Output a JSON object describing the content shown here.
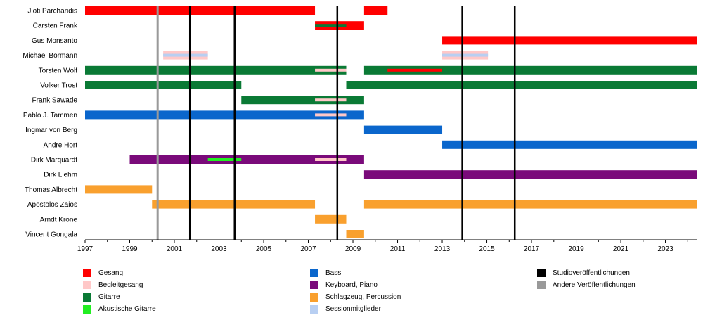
{
  "chart_data": {
    "type": "timeline",
    "xlim": [
      1997,
      2024.4
    ],
    "x_ticks": [
      "1997",
      "1999",
      "2001",
      "2003",
      "2005",
      "2007",
      "2009",
      "2011",
      "2013",
      "2015",
      "2017",
      "2019",
      "2021",
      "2023"
    ],
    "members": [
      "Jioti Parcharidis",
      "Carsten Frank",
      "Gus Monsanto",
      "Michael Bormann",
      "Torsten Wolf",
      "Volker Trost",
      "Frank Sawade",
      "Pablo J. Tammen",
      "Ingmar von Berg",
      "Andre Hort",
      "Dirk Marquardt",
      "Dirk Liehm",
      "Thomas Albrecht",
      "Apostolos Zaios",
      "Arndt Krone",
      "Vincent Gongala"
    ],
    "roles": {
      "vocals": {
        "label": "Gesang",
        "color": "#ff0000"
      },
      "backing_vocals": {
        "label": "Begleitgesang",
        "color": "#ffc8c8"
      },
      "guitar": {
        "label": "Gitarre",
        "color": "#0a7a35"
      },
      "acoustic_guitar": {
        "label": "Akustische Gitarre",
        "color": "#22ee22"
      },
      "bass": {
        "label": "Bass",
        "color": "#0a66cc"
      },
      "keyboard": {
        "label": "Keyboard, Piano",
        "color": "#7a0a7a"
      },
      "drums": {
        "label": "Schlagzeug, Percussion",
        "color": "#f9a02e"
      },
      "session": {
        "label": "Sessionmitglieder",
        "color": "#b8cff2"
      },
      "studio_release": {
        "label": "Studioveröffentlichungen",
        "color": "#000000"
      },
      "other_release": {
        "label": "Andere Veröffentlichungen",
        "color": "#999999"
      }
    },
    "legend_columns": [
      [
        "vocals",
        "backing_vocals",
        "guitar",
        "acoustic_guitar"
      ],
      [
        "bass",
        "keyboard",
        "drums",
        "session"
      ],
      [
        "studio_release",
        "other_release"
      ]
    ],
    "studio_releases": [
      2001.7,
      2003.7,
      2008.3,
      2013.9,
      2016.25
    ],
    "other_releases": [
      2000.25
    ],
    "bars": [
      {
        "row": 0,
        "role": "vocals",
        "start": 1997,
        "end": 2007.3
      },
      {
        "row": 0,
        "role": "vocals",
        "start": 2009.5,
        "end": 2010.55
      },
      {
        "row": 1,
        "role": "vocals",
        "start": 2007.3,
        "end": 2009.5
      },
      {
        "row": 2,
        "role": "vocals",
        "start": 2013.0,
        "end": 2024.4
      },
      {
        "row": 3,
        "role": "backing_vocals",
        "start": 2000.5,
        "end": 2002.5
      },
      {
        "row": 3,
        "role": "backing_vocals",
        "start": 2013.0,
        "end": 2015.05
      },
      {
        "row": 4,
        "role": "guitar",
        "start": 1997,
        "end": 2008.7
      },
      {
        "row": 4,
        "role": "guitar",
        "start": 2009.5,
        "end": 2024.4
      },
      {
        "row": 5,
        "role": "guitar",
        "start": 1997,
        "end": 2004.0
      },
      {
        "row": 5,
        "role": "guitar",
        "start": 2008.7,
        "end": 2024.4
      },
      {
        "row": 6,
        "role": "guitar",
        "start": 2004.0,
        "end": 2009.5
      },
      {
        "row": 7,
        "role": "bass",
        "start": 1997,
        "end": 2009.5
      },
      {
        "row": 8,
        "role": "bass",
        "start": 2009.5,
        "end": 2013.0
      },
      {
        "row": 9,
        "role": "bass",
        "start": 2013.0,
        "end": 2024.4
      },
      {
        "row": 10,
        "role": "keyboard",
        "start": 1999.0,
        "end": 2009.5
      },
      {
        "row": 11,
        "role": "keyboard",
        "start": 2009.5,
        "end": 2024.4
      },
      {
        "row": 12,
        "role": "drums",
        "start": 1997,
        "end": 2000.0
      },
      {
        "row": 13,
        "role": "drums",
        "start": 2000.0,
        "end": 2007.3
      },
      {
        "row": 13,
        "role": "drums",
        "start": 2009.5,
        "end": 2024.4
      },
      {
        "row": 14,
        "role": "drums",
        "start": 2007.3,
        "end": 2008.7
      },
      {
        "row": 15,
        "role": "drums",
        "start": 2008.7,
        "end": 2009.5
      }
    ],
    "sub_bars": [
      {
        "row": 1,
        "role": "guitar",
        "start": 2007.3,
        "end": 2008.7
      },
      {
        "row": 3,
        "role": "session",
        "start": 2000.5,
        "end": 2002.5
      },
      {
        "row": 3,
        "role": "session",
        "start": 2013.0,
        "end": 2015.05
      },
      {
        "row": 4,
        "role": "backing_vocals",
        "start": 2007.3,
        "end": 2008.7
      },
      {
        "row": 4,
        "role": "vocals",
        "start": 2010.55,
        "end": 2013.0
      },
      {
        "row": 6,
        "role": "backing_vocals",
        "start": 2007.3,
        "end": 2008.7
      },
      {
        "row": 7,
        "role": "backing_vocals",
        "start": 2007.3,
        "end": 2008.7
      },
      {
        "row": 10,
        "role": "acoustic_guitar",
        "start": 2002.5,
        "end": 2004.0
      },
      {
        "row": 10,
        "role": "backing_vocals",
        "start": 2007.3,
        "end": 2008.7
      }
    ]
  }
}
